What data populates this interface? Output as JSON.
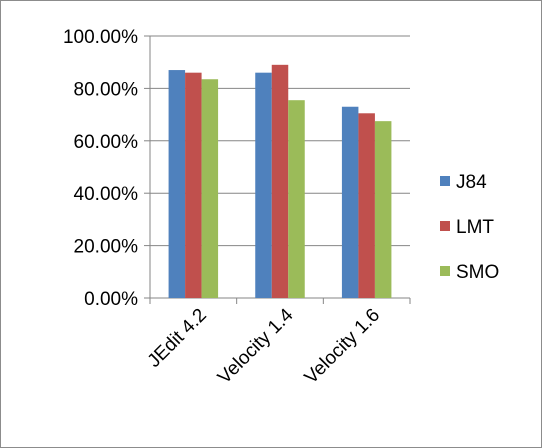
{
  "chart_data": {
    "type": "bar",
    "categories": [
      "JEdit 4.2",
      "Velocity 1.4",
      "Velocity 1.6"
    ],
    "series": [
      {
        "name": "J84",
        "values": [
          0.87,
          0.86,
          0.73
        ],
        "color": "#4f81bd"
      },
      {
        "name": "LMT",
        "values": [
          0.86,
          0.89,
          0.705
        ],
        "color": "#c0504d"
      },
      {
        "name": "SMO",
        "values": [
          0.835,
          0.755,
          0.675
        ],
        "color": "#9bbb59"
      }
    ],
    "ylim": [
      0,
      1
    ],
    "yticks": [
      0,
      0.2,
      0.4,
      0.6,
      0.8,
      1.0
    ],
    "ytick_labels": [
      "0.00%",
      "20.00%",
      "40.00%",
      "60.00%",
      "80.00%",
      "100.00%"
    ],
    "grid": true,
    "legend_position": "right",
    "title": "",
    "xlabel": "",
    "ylabel": ""
  }
}
